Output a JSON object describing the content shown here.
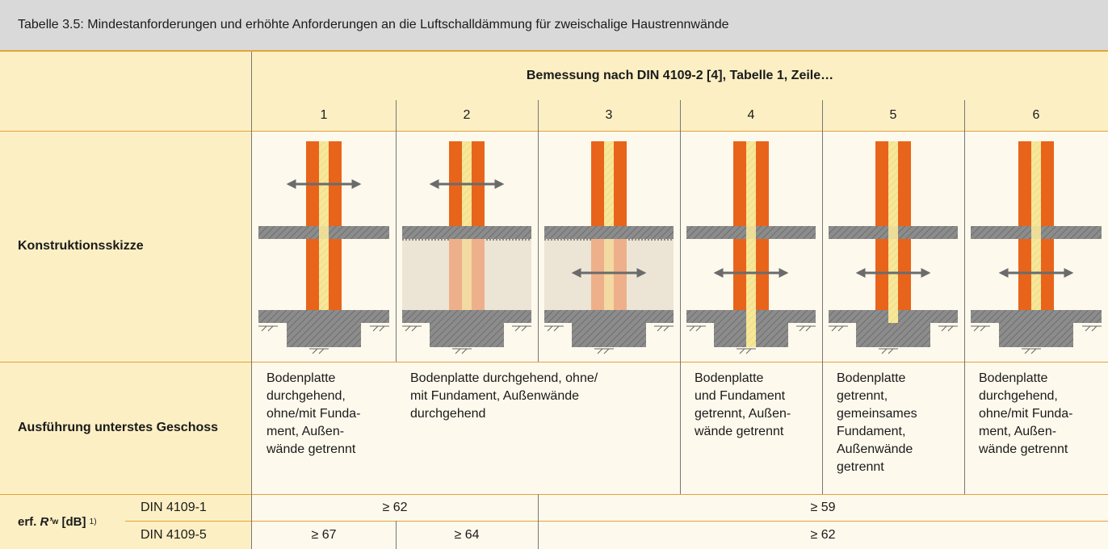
{
  "title": "Tabelle 3.5: Mindestanforderungen und erhöhte Anforderungen an die Luftschalldämmung für zweischalige Haustrennwände",
  "header": {
    "group": "Bemessung nach DIN 4109-2 [4], Tabelle 1, Zeile…",
    "columns": [
      "1",
      "2",
      "3",
      "4",
      "5",
      "6"
    ]
  },
  "sketch_row": {
    "label": "Konstruktionsskizze"
  },
  "execution_row": {
    "label": "Ausführung unterstes Geschoss",
    "cells": [
      "Bodenplatte\ndurchgehend,\nohne/mit Funda-\nment, Außen-\nwände getrennt",
      "Bodenplatte durchgehend, ohne/\nmit Fundament, Außenwände\ndurchgehend",
      "Bodenplatte\nund Fundament\ngetrennt, Außen-\nwände getrennt",
      "Bodenplatte\ngetrennt,\ngemeinsames\nFundament,\nAußenwände\ngetrennt",
      "Bodenplatte\ndurchgehend,\nohne/mit Funda-\nment, Außen-\nwände getrennt"
    ]
  },
  "requirement": {
    "label": {
      "prefix": "erf.",
      "symbol": "R’",
      "subscript": "w",
      "unit": "[dB]",
      "footnote": "1)"
    },
    "rows": [
      {
        "norm": "DIN 4109-1",
        "values": [
          "≥ 62",
          "≥ 59"
        ]
      },
      {
        "norm": "DIN 4109-5",
        "values": [
          "≥ 67",
          "≥ 64",
          "≥ 62"
        ]
      }
    ]
  }
}
